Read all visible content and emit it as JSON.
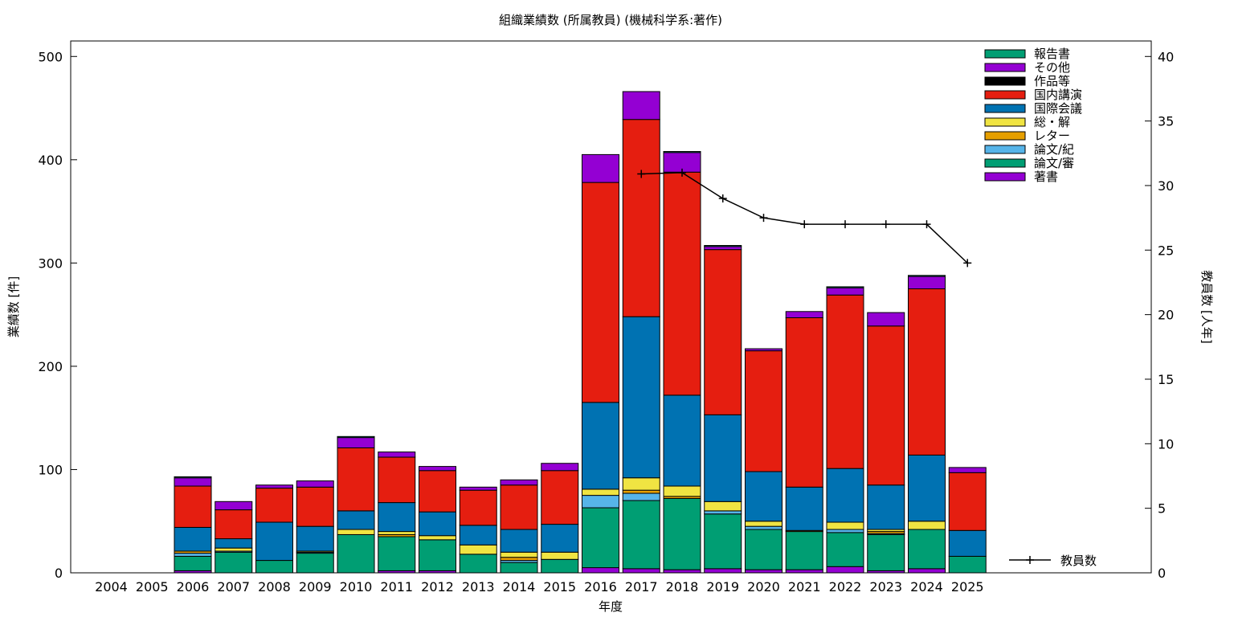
{
  "chart_data": {
    "type": "bar",
    "title": "組織業績数 (所属教員) (機械科学系:著作)",
    "xlabel": "年度",
    "ylabel": "業績数 [件]",
    "y2label": "教員数 [人年]",
    "ylim": [
      0,
      515
    ],
    "y2lim": [
      0,
      41.2
    ],
    "yticks": [
      "0",
      "100",
      "200",
      "300",
      "400",
      "500"
    ],
    "y2ticks": [
      "0",
      "5",
      "10",
      "15",
      "20",
      "25",
      "30",
      "35",
      "40"
    ],
    "categories": [
      "2004",
      "2005",
      "2006",
      "2007",
      "2008",
      "2009",
      "2010",
      "2011",
      "2012",
      "2013",
      "2014",
      "2015",
      "2016",
      "2017",
      "2018",
      "2019",
      "2020",
      "2021",
      "2022",
      "2023",
      "2024",
      "2025"
    ],
    "legend_position": "top-right",
    "stacked": true,
    "series": [
      {
        "name": "著書",
        "color": "#9400d3",
        "values": [
          0,
          0,
          2,
          0,
          0,
          0,
          0,
          2,
          2,
          0,
          0,
          0,
          5,
          4,
          3,
          4,
          3,
          3,
          6,
          2,
          4,
          0
        ]
      },
      {
        "name": "論文/審",
        "color": "#009e73",
        "values": [
          0,
          0,
          14,
          20,
          12,
          19,
          37,
          33,
          30,
          18,
          10,
          13,
          58,
          66,
          69,
          53,
          39,
          37,
          33,
          35,
          38,
          16
        ]
      },
      {
        "name": "論文/紀",
        "color": "#56b4e9",
        "values": [
          0,
          0,
          3,
          1,
          0,
          1,
          0,
          0,
          0,
          0,
          2,
          0,
          12,
          7,
          0,
          3,
          3,
          0,
          3,
          1,
          0,
          0
        ]
      },
      {
        "name": "レター",
        "color": "#e69f00",
        "values": [
          0,
          0,
          2,
          0,
          0,
          0,
          0,
          2,
          0,
          0,
          3,
          0,
          0,
          3,
          2,
          0,
          0,
          1,
          0,
          2,
          0,
          0
        ]
      },
      {
        "name": "総・解",
        "color": "#f0e442",
        "values": [
          0,
          0,
          0,
          3,
          0,
          1,
          5,
          3,
          4,
          9,
          5,
          7,
          6,
          12,
          10,
          9,
          5,
          0,
          7,
          2,
          8,
          0
        ]
      },
      {
        "name": "国際会議",
        "color": "#0072b2",
        "values": [
          0,
          0,
          23,
          9,
          37,
          24,
          18,
          28,
          23,
          19,
          22,
          27,
          84,
          156,
          88,
          84,
          48,
          42,
          52,
          43,
          64,
          25
        ]
      },
      {
        "name": "国内講演",
        "color": "#e51e10",
        "values": [
          0,
          0,
          40,
          28,
          33,
          38,
          61,
          44,
          40,
          34,
          43,
          52,
          213,
          191,
          216,
          160,
          117,
          164,
          168,
          154,
          161,
          56
        ]
      },
      {
        "name": "作品等",
        "color": "#000000",
        "values": [
          0,
          0,
          0,
          0,
          0,
          0,
          0,
          0,
          0,
          0,
          0,
          0,
          0,
          0,
          0,
          0,
          0,
          0,
          0,
          0,
          0,
          0
        ]
      },
      {
        "name": "その他",
        "color": "#9400d3",
        "values": [
          0,
          0,
          8,
          8,
          3,
          6,
          10,
          5,
          4,
          3,
          5,
          7,
          27,
          27,
          19,
          3,
          2,
          6,
          7,
          13,
          12,
          5
        ]
      },
      {
        "name": "報告書",
        "color": "#009e73",
        "values": [
          0,
          0,
          1,
          0,
          0,
          0,
          1,
          0,
          0,
          0,
          0,
          0,
          0,
          0,
          1,
          1,
          0,
          0,
          1,
          0,
          1,
          0
        ]
      }
    ],
    "line_series": {
      "name": "教員数",
      "color": "#000000",
      "axis": "y2",
      "values": [
        null,
        null,
        null,
        null,
        null,
        null,
        null,
        null,
        null,
        null,
        null,
        null,
        null,
        30.9,
        31.0,
        29.0,
        27.5,
        27.0,
        27.0,
        27.0,
        27.0,
        24.0
      ]
    }
  }
}
